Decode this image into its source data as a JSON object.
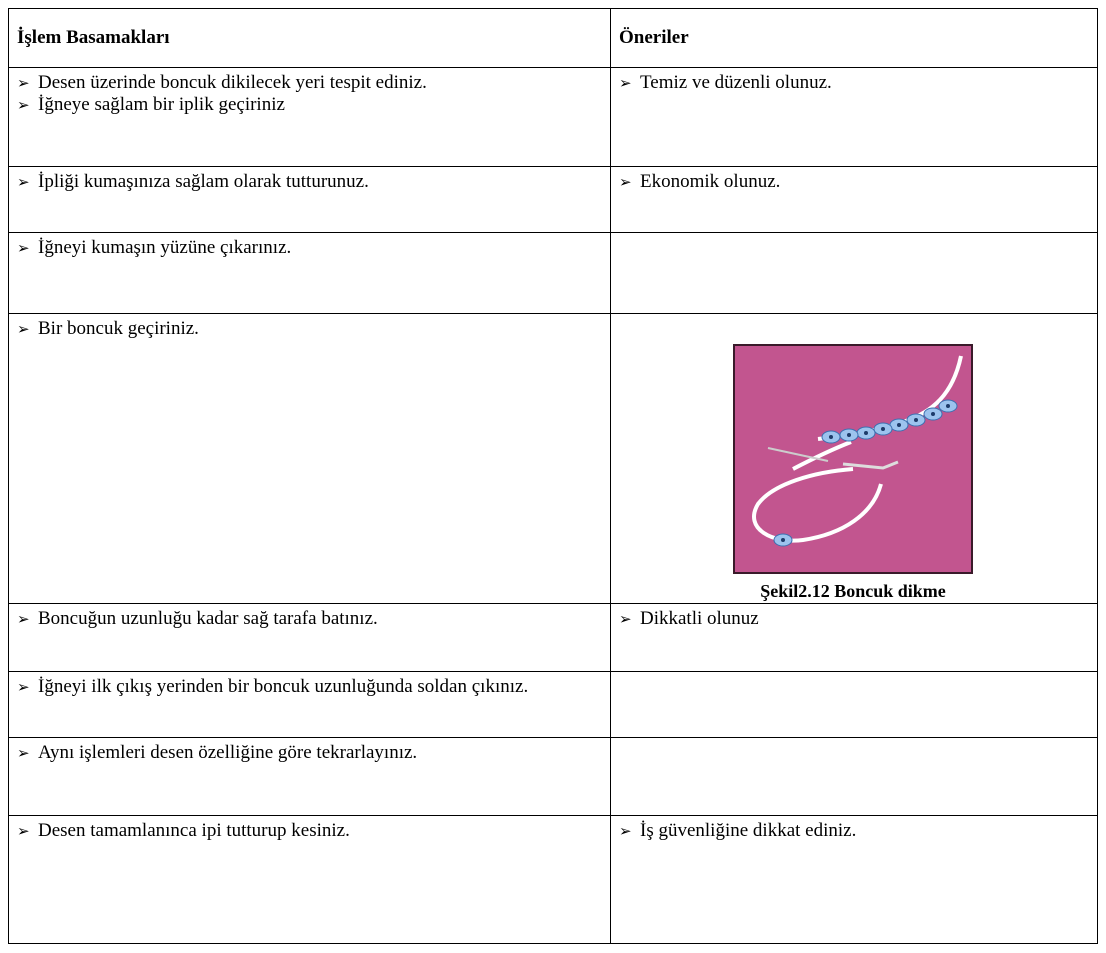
{
  "table": {
    "header": [
      "İşlem Basamakları",
      "Öneriler"
    ],
    "rows": [
      [
        [
          "Desen üzerinde boncuk dikilecek yeri tespit ediniz.",
          "İğneye sağlam bir iplik geçiriniz"
        ],
        [
          "Temiz ve düzenli olunuz."
        ]
      ],
      [
        [
          "İpliği kumaşınıza sağlam olarak tutturunuz."
        ],
        [
          "Ekonomik olunuz."
        ]
      ],
      [
        [
          "İğneyi kumaşın yüzüne çıkarınız."
        ],
        []
      ],
      [
        [
          "Bir boncuk geçiriniz."
        ],
        []
      ],
      [
        [
          "Boncuğun uzunluğu kadar sağ tarafa batınız."
        ],
        [
          "Dikkatli olunuz"
        ]
      ],
      [
        [
          "İğneyi ilk çıkış yerinden bir boncuk uzunluğunda soldan çıkınız."
        ],
        []
      ],
      [
        [
          "Aynı işlemleri desen özelliğine göre tekrarlayınız."
        ],
        []
      ],
      [
        [
          "Desen tamamlanınca ipi tutturup kesiniz."
        ],
        [
          "İş güvenliğine dikkat ediniz."
        ]
      ]
    ],
    "figure": {
      "row": 3,
      "caption": "Şekil2.12 Boncuk dikme"
    }
  }
}
